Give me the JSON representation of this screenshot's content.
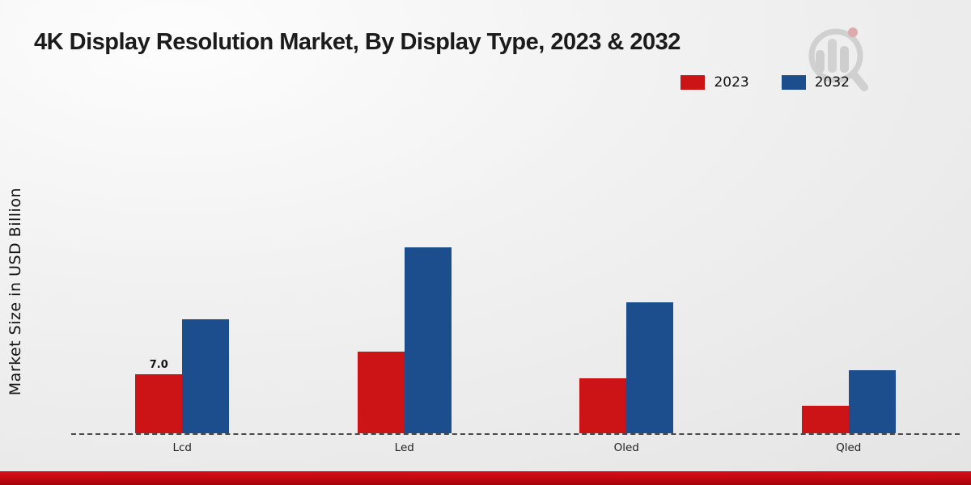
{
  "header": {
    "title": "4K Display Resolution Market, By Display Type, 2023 & 2032"
  },
  "chart_data": {
    "type": "bar",
    "title": "4K Display Resolution Market, By Display Type, 2023 & 2032",
    "xlabel": "",
    "ylabel": "Market Size in USD Billion",
    "categories": [
      "Lcd",
      "Led",
      "Oled",
      "Qled"
    ],
    "series": [
      {
        "name": "2023",
        "color": "#cc1316",
        "values": [
          7.0,
          9.7,
          6.5,
          3.3
        ],
        "labels": [
          "7.0",
          "",
          "",
          ""
        ]
      },
      {
        "name": "2032",
        "color": "#1c4e8e",
        "values": [
          13.5,
          22.0,
          15.5,
          7.5
        ],
        "labels": [
          "",
          "",
          "",
          ""
        ]
      }
    ],
    "ylim": [
      0,
      40
    ],
    "grid": "off",
    "legend_position": "top-right",
    "baseline_style": "dashed"
  },
  "legend": {
    "items": [
      {
        "label": "2023",
        "color": "#cc1316"
      },
      {
        "label": "2032",
        "color": "#1c4e8e"
      }
    ]
  },
  "branding": {
    "logo": "magnifier-bar-chart-watermark-icon",
    "footer_color": "#c00712"
  }
}
